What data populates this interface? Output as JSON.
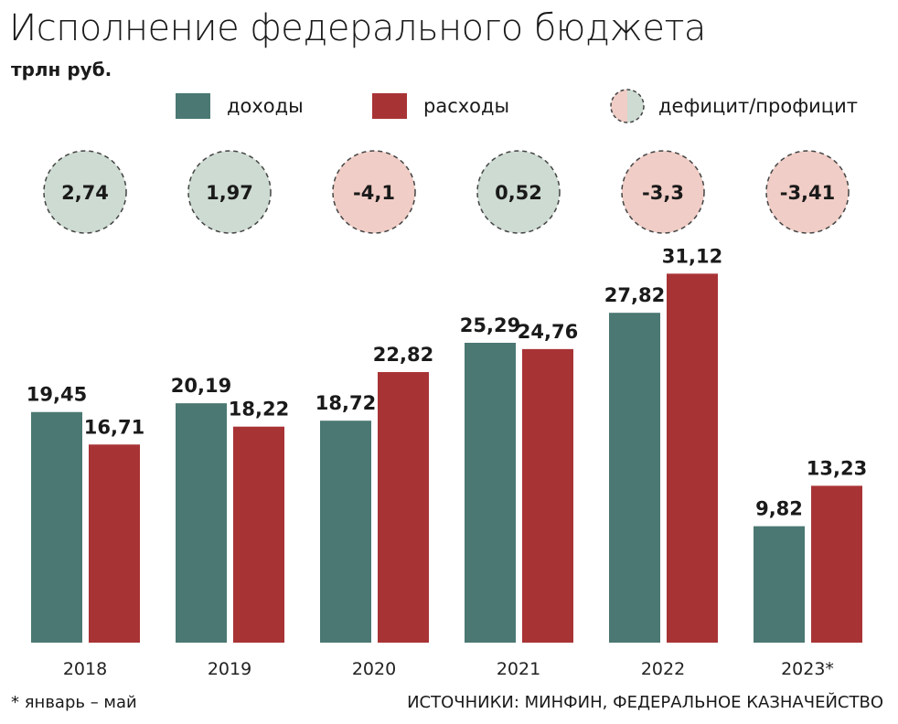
{
  "title": "Исполнение федерального бюджета",
  "subtitle": "трлн руб.",
  "legend": {
    "income": "доходы",
    "expense": "расходы",
    "balance": "дефицит/профицит"
  },
  "colors": {
    "income": "#4b7872",
    "expense": "#a83335",
    "surplus": "#cddbd2",
    "deficit": "#f0cdc6"
  },
  "footnote": "* январь – май",
  "source": "ИСТОЧНИКИ: МИНФИН, ФЕДЕРАЛЬНОЕ КАЗНАЧЕЙСТВО",
  "chart_data": {
    "type": "bar",
    "categories": [
      "2018",
      "2019",
      "2020",
      "2021",
      "2022",
      "2023*"
    ],
    "series": [
      {
        "name": "доходы",
        "values": [
          19.45,
          20.19,
          18.72,
          25.29,
          27.82,
          9.82
        ],
        "labels": [
          "19,45",
          "20,19",
          "18,72",
          "25,29",
          "27,82",
          "9,82"
        ]
      },
      {
        "name": "расходы",
        "values": [
          16.71,
          18.22,
          22.82,
          24.76,
          31.12,
          13.23
        ],
        "labels": [
          "16,71",
          "18,22",
          "22,82",
          "24,76",
          "31,12",
          "13,23"
        ]
      }
    ],
    "balance": {
      "name": "дефицит/профицит",
      "values": [
        2.74,
        1.97,
        -4.1,
        0.52,
        -3.3,
        -3.41
      ],
      "labels": [
        "2,74",
        "1,97",
        "-4,1",
        "0,52",
        "-3,3",
        "-3,41"
      ]
    }
  }
}
